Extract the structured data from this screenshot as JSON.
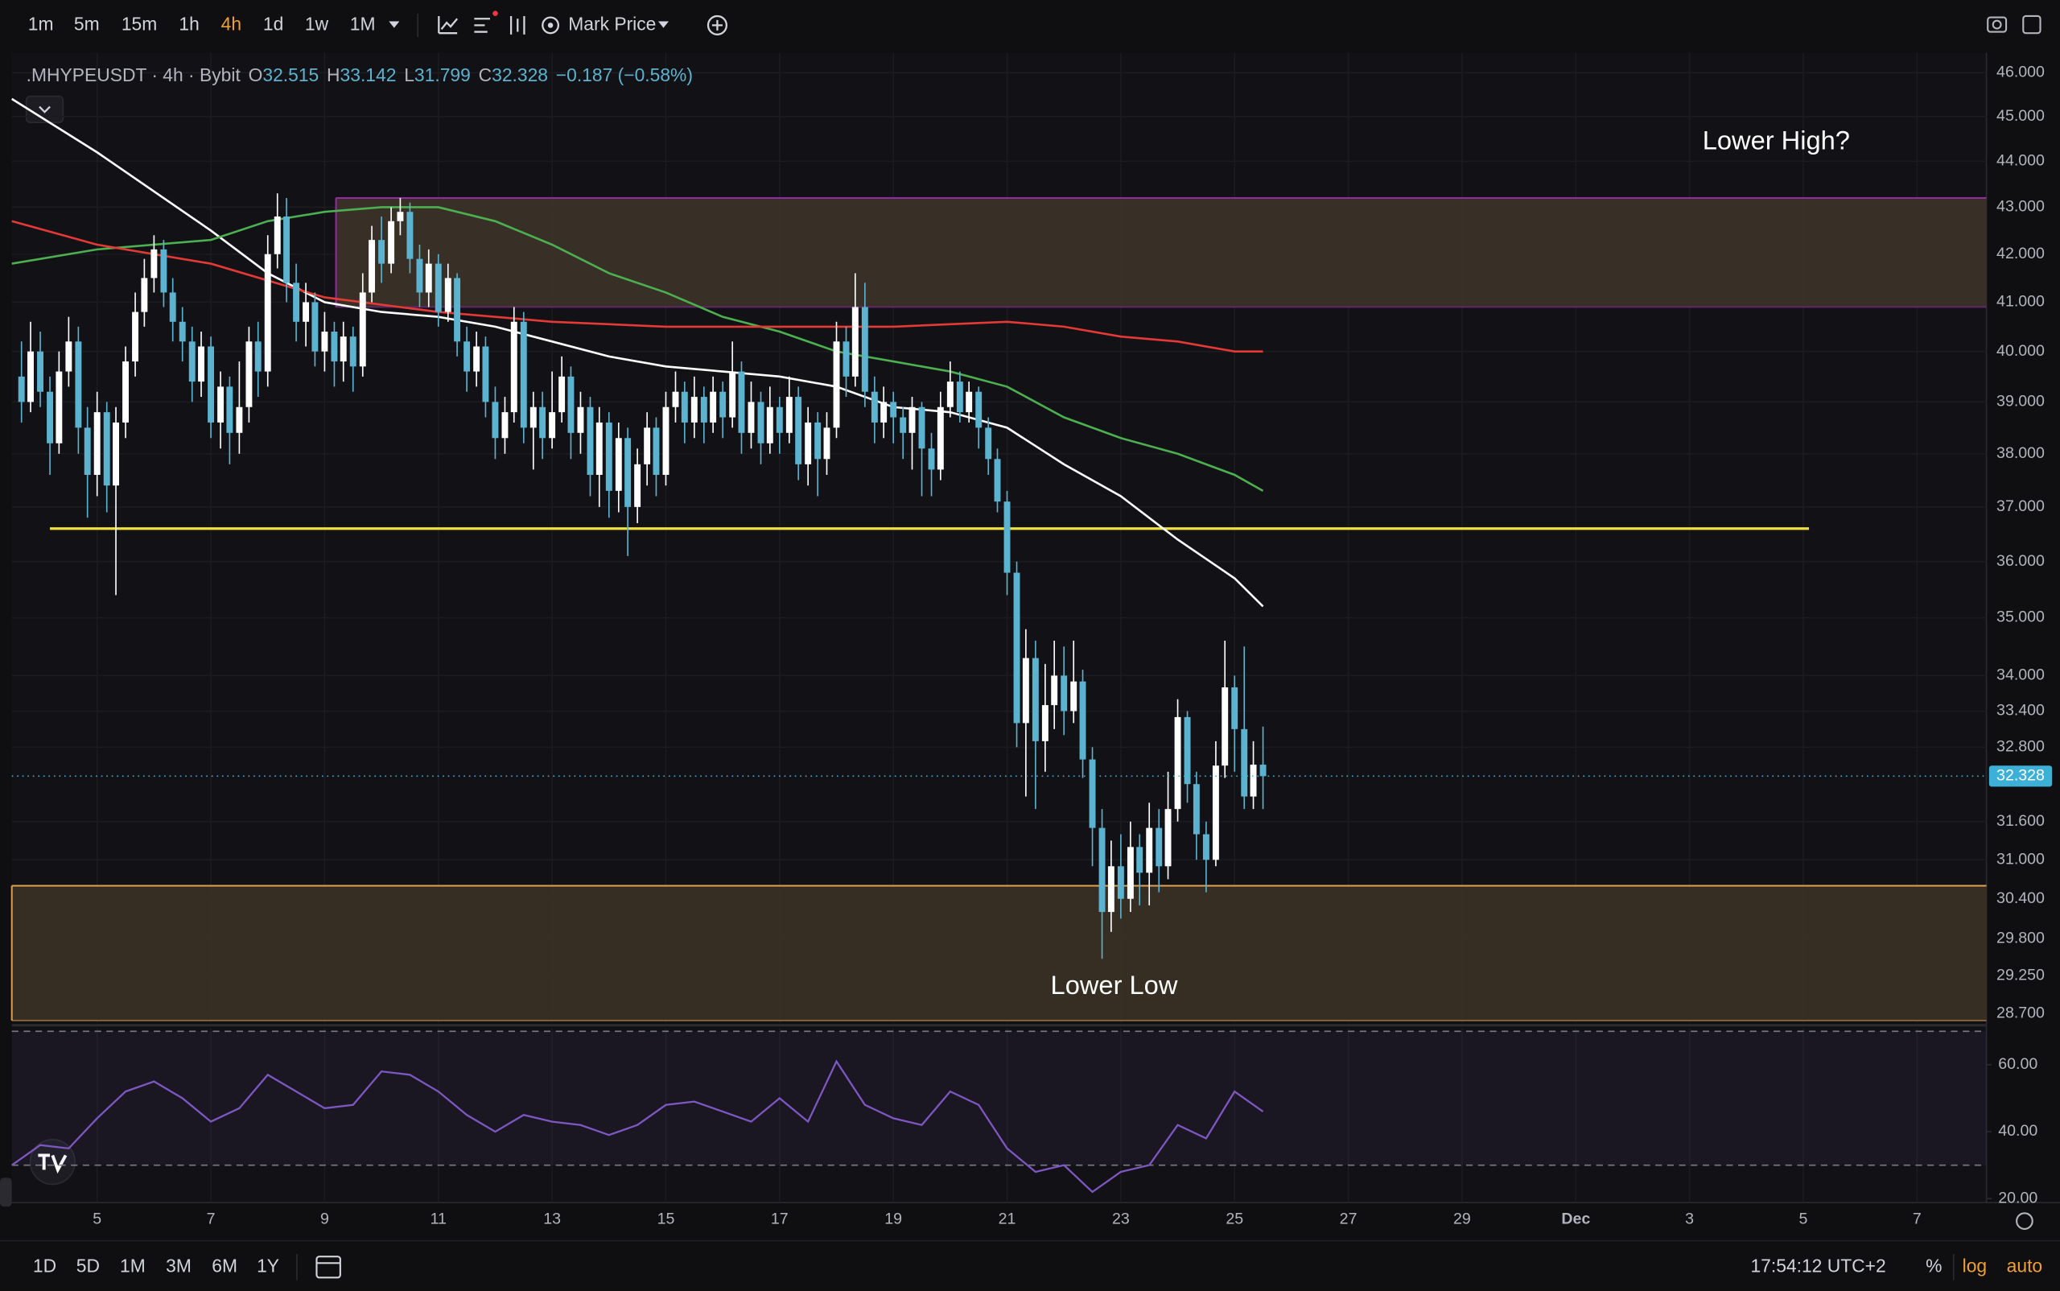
{
  "toolbar": {
    "intervals": [
      "1m",
      "5m",
      "15m",
      "1h",
      "4h",
      "1d",
      "1w",
      "1M"
    ],
    "active_interval": "4h",
    "price_source": "Mark Price"
  },
  "bottom_bar": {
    "ranges": [
      "1D",
      "5D",
      "1M",
      "3M",
      "6M",
      "1Y"
    ],
    "clock": "17:54:12 UTC+2",
    "options": [
      "%",
      "log",
      "auto"
    ]
  },
  "chart_data": {
    "type": "candlestick",
    "symbol": ".MHYPEUSDT · 4h · Bybit",
    "ohlc_labels": [
      "O",
      "H",
      "L",
      "C"
    ],
    "change": "−0.187 (−0.58%)",
    "up_color": "#ffffff",
    "down_color": "#5cb3cf",
    "x": [
      3.67,
      3.83,
      4,
      4.17,
      4.33,
      4.5,
      4.67,
      4.83,
      5,
      5.17,
      5.33,
      5.5,
      5.67,
      5.83,
      6,
      6.17,
      6.33,
      6.5,
      6.67,
      6.83,
      7,
      7.17,
      7.33,
      7.5,
      7.67,
      7.83,
      8,
      8.17,
      8.33,
      8.5,
      8.67,
      8.83,
      9,
      9.17,
      9.33,
      9.5,
      9.67,
      9.83,
      10,
      10.17,
      10.33,
      10.5,
      10.67,
      10.83,
      11,
      11.17,
      11.33,
      11.5,
      11.67,
      11.83,
      12,
      12.17,
      12.33,
      12.5,
      12.67,
      12.83,
      13,
      13.17,
      13.33,
      13.5,
      13.67,
      13.83,
      14,
      14.17,
      14.33,
      14.5,
      14.67,
      14.83,
      15,
      15.17,
      15.33,
      15.5,
      15.67,
      15.83,
      16,
      16.17,
      16.33,
      16.5,
      16.67,
      16.83,
      17,
      17.17,
      17.33,
      17.5,
      17.67,
      17.83,
      18,
      18.17,
      18.33,
      18.5,
      18.67,
      18.83,
      19,
      19.17,
      19.33,
      19.5,
      19.67,
      19.83,
      20,
      20.17,
      20.33,
      20.5,
      20.67,
      20.83,
      21,
      21.17,
      21.33,
      21.5,
      21.67,
      21.83,
      22,
      22.17,
      22.33,
      22.5,
      22.67,
      22.83,
      23,
      23.17,
      23.33,
      23.5,
      23.67,
      23.83,
      24,
      24.17,
      24.33,
      24.5,
      24.67,
      24.83,
      25,
      25.17,
      25.33,
      25.5
    ],
    "open": [
      39.5,
      39.0,
      40.0,
      39.2,
      38.2,
      39.6,
      40.2,
      38.5,
      37.6,
      38.8,
      37.4,
      38.6,
      39.8,
      40.8,
      41.5,
      42.1,
      41.2,
      40.6,
      40.2,
      39.4,
      40.1,
      38.6,
      39.3,
      38.4,
      38.9,
      40.2,
      39.6,
      42.0,
      42.8,
      41.4,
      40.6,
      41.0,
      40.0,
      40.4,
      39.8,
      40.3,
      39.7,
      41.2,
      42.3,
      41.8,
      42.7,
      42.9,
      41.9,
      41.2,
      41.8,
      40.8,
      41.5,
      40.2,
      39.6,
      40.1,
      39.0,
      38.3,
      38.8,
      40.6,
      38.5,
      38.9,
      38.3,
      38.8,
      39.5,
      38.4,
      38.9,
      37.6,
      38.6,
      37.3,
      38.3,
      37.0,
      37.8,
      38.5,
      37.6,
      38.9,
      39.2,
      38.6,
      39.1,
      38.6,
      39.2,
      38.7,
      39.6,
      38.4,
      39.0,
      38.2,
      38.9,
      38.4,
      39.1,
      37.8,
      38.6,
      37.9,
      38.5,
      40.2,
      39.5,
      40.9,
      39.2,
      38.6,
      39.0,
      38.7,
      38.4,
      38.9,
      38.1,
      37.7,
      38.9,
      39.4,
      38.8,
      39.2,
      38.5,
      37.9,
      37.1,
      35.8,
      33.2,
      34.3,
      32.9,
      33.5,
      34.0,
      33.4,
      33.9,
      32.6,
      31.5,
      30.2,
      30.9,
      30.4,
      31.2,
      30.8,
      31.5,
      30.9,
      31.8,
      33.3,
      32.2,
      31.4,
      31.0,
      32.5,
      33.8,
      33.1,
      32.0,
      32.515
    ],
    "high": [
      40.2,
      40.6,
      40.4,
      39.5,
      40.0,
      40.7,
      40.5,
      38.9,
      39.2,
      39.0,
      38.9,
      40.1,
      41.2,
      41.9,
      42.4,
      42.3,
      41.5,
      40.9,
      40.5,
      40.4,
      40.3,
      39.6,
      39.5,
      39.8,
      40.5,
      40.6,
      42.4,
      43.3,
      43.2,
      41.8,
      41.4,
      41.2,
      40.8,
      40.6,
      40.6,
      40.5,
      41.6,
      42.6,
      42.8,
      43.0,
      43.2,
      43.1,
      42.2,
      42.1,
      42.0,
      41.8,
      41.6,
      40.5,
      40.4,
      40.3,
      39.3,
      39.1,
      40.9,
      40.8,
      39.2,
      39.2,
      39.6,
      39.9,
      39.7,
      39.2,
      39.1,
      38.9,
      38.8,
      38.6,
      38.5,
      38.1,
      38.8,
      38.7,
      39.2,
      39.6,
      39.4,
      39.5,
      39.3,
      39.5,
      39.4,
      40.2,
      39.8,
      39.4,
      39.2,
      39.3,
      39.1,
      39.5,
      39.3,
      38.9,
      38.8,
      38.8,
      40.6,
      40.5,
      41.6,
      41.4,
      39.5,
      39.3,
      39.2,
      38.9,
      39.1,
      39.0,
      38.4,
      39.2,
      39.8,
      39.6,
      39.4,
      39.3,
      38.7,
      38.1,
      37.3,
      36.0,
      34.8,
      34.6,
      34.2,
      34.6,
      34.5,
      34.6,
      34.1,
      32.8,
      31.8,
      31.3,
      31.4,
      31.6,
      31.4,
      31.9,
      31.8,
      32.4,
      33.6,
      33.4,
      32.4,
      31.6,
      32.9,
      34.6,
      34.0,
      34.5,
      32.9,
      33.142
    ],
    "low": [
      38.6,
      38.8,
      38.9,
      37.6,
      38.0,
      39.3,
      38.0,
      36.8,
      37.2,
      36.9,
      35.4,
      38.3,
      39.5,
      40.5,
      41.2,
      40.9,
      40.2,
      39.8,
      39.0,
      39.1,
      38.3,
      38.1,
      37.8,
      38.0,
      38.6,
      39.1,
      39.3,
      41.7,
      41.0,
      40.2,
      40.1,
      39.7,
      39.6,
      39.3,
      39.4,
      39.2,
      39.5,
      41.0,
      41.4,
      41.6,
      42.4,
      41.6,
      40.9,
      40.9,
      40.5,
      40.6,
      39.9,
      39.2,
      39.3,
      38.7,
      37.9,
      38.0,
      38.6,
      38.2,
      37.7,
      37.9,
      38.1,
      38.6,
      37.9,
      38.0,
      37.2,
      37.0,
      36.8,
      36.9,
      36.1,
      36.7,
      37.4,
      37.2,
      37.4,
      38.6,
      38.2,
      38.3,
      38.2,
      38.4,
      38.3,
      38.5,
      38.0,
      38.1,
      37.8,
      38.0,
      38.0,
      38.2,
      37.5,
      37.4,
      37.2,
      37.6,
      38.3,
      39.1,
      39.3,
      38.9,
      38.2,
      38.3,
      38.2,
      37.9,
      37.7,
      37.2,
      37.2,
      37.5,
      38.7,
      38.6,
      38.6,
      38.1,
      37.6,
      36.9,
      35.4,
      32.8,
      32.0,
      31.8,
      32.4,
      33.1,
      33.0,
      33.2,
      32.3,
      30.9,
      29.5,
      29.9,
      30.1,
      30.2,
      30.3,
      30.3,
      30.5,
      30.7,
      31.6,
      31.9,
      31.0,
      30.5,
      30.9,
      32.3,
      32.4,
      31.8,
      31.8,
      31.799
    ],
    "close": [
      39.0,
      40.0,
      39.2,
      38.2,
      39.6,
      40.2,
      38.5,
      37.6,
      38.8,
      37.4,
      38.6,
      39.8,
      40.8,
      41.5,
      42.1,
      41.2,
      40.6,
      40.2,
      39.4,
      40.1,
      38.6,
      39.3,
      38.4,
      38.9,
      40.2,
      39.6,
      42.0,
      42.8,
      41.4,
      40.6,
      41.0,
      40.0,
      40.4,
      39.8,
      40.3,
      39.7,
      41.2,
      42.3,
      41.8,
      42.7,
      42.9,
      41.9,
      41.2,
      41.8,
      40.8,
      41.5,
      40.2,
      39.6,
      40.1,
      39.0,
      38.3,
      38.8,
      40.6,
      38.5,
      38.9,
      38.3,
      38.8,
      39.5,
      38.4,
      38.9,
      37.6,
      38.6,
      37.3,
      38.3,
      37.0,
      37.8,
      38.5,
      37.6,
      38.9,
      39.2,
      38.6,
      39.1,
      38.6,
      39.2,
      38.7,
      39.6,
      38.4,
      39.0,
      38.2,
      38.9,
      38.4,
      39.1,
      37.8,
      38.6,
      37.9,
      38.5,
      40.2,
      39.5,
      40.9,
      39.2,
      38.6,
      39.0,
      38.7,
      38.4,
      38.9,
      38.1,
      37.7,
      38.9,
      39.4,
      38.8,
      39.2,
      38.5,
      37.9,
      37.1,
      35.8,
      33.2,
      34.3,
      32.9,
      33.5,
      34.0,
      33.4,
      33.9,
      32.6,
      31.5,
      30.2,
      30.9,
      30.4,
      31.2,
      30.8,
      31.5,
      30.9,
      31.8,
      33.3,
      32.2,
      31.4,
      31.0,
      32.5,
      33.8,
      33.1,
      32.0,
      32.515,
      32.328
    ],
    "price_line_color": "#3cb0d6",
    "xlim": [
      3.5,
      38.22
    ],
    "xticks": [
      5,
      7,
      9,
      11,
      13,
      15,
      17,
      19,
      21,
      23,
      25,
      27,
      29,
      {
        "value": 31,
        "label": "Dec"
      },
      {
        "value": 33,
        "label": "3"
      },
      {
        "value": 35,
        "label": "5"
      },
      {
        "value": 37,
        "label": "7"
      }
    ],
    "ylim": [
      28.57,
      46.46
    ],
    "log_scale": true,
    "grid": true,
    "yticks": [
      {
        "value": 46,
        "label": "46.000"
      },
      {
        "value": 45,
        "label": "45.000"
      },
      {
        "value": 44,
        "label": "44.000"
      },
      {
        "value": 43,
        "label": "43.000"
      },
      {
        "value": 42,
        "label": "42.000"
      },
      {
        "value": 41,
        "label": "41.000"
      },
      {
        "value": 40,
        "label": "40.000"
      },
      {
        "value": 39,
        "label": "39.000"
      },
      {
        "value": 38,
        "label": "38.000"
      },
      {
        "value": 37,
        "label": "37.000"
      },
      {
        "value": 36,
        "label": "36.000"
      },
      {
        "value": 35,
        "label": "35.000"
      },
      {
        "value": 34,
        "label": "34.000"
      },
      {
        "value": 33.4,
        "label": "33.400"
      },
      {
        "value": 32.8,
        "label": "32.800"
      },
      {
        "value": 31.6,
        "label": "31.600"
      },
      {
        "value": 31,
        "label": "31.000"
      },
      {
        "value": 30.4,
        "label": "30.400"
      },
      {
        "value": 29.8,
        "label": "29.800"
      },
      {
        "value": 29.25,
        "label": "29.250"
      },
      {
        "value": 28.7,
        "label": "28.700"
      }
    ],
    "lines": [
      {
        "color": "#ffffff",
        "x": [
          3.5,
          5,
          7,
          8,
          9,
          10,
          11,
          12,
          13,
          14,
          15,
          16,
          17,
          18,
          19,
          20,
          21,
          22,
          23,
          24,
          25,
          25.5
        ],
        "values": [
          45.4,
          44.2,
          42.5,
          41.6,
          41.0,
          40.8,
          40.7,
          40.5,
          40.2,
          39.9,
          39.7,
          39.6,
          39.5,
          39.3,
          38.9,
          38.8,
          38.5,
          37.8,
          37.2,
          36.4,
          35.7,
          35.2
        ]
      },
      {
        "color": "#4caf50",
        "x": [
          3.5,
          5,
          7,
          8,
          9,
          10,
          11,
          12,
          13,
          14,
          15,
          16,
          17,
          18,
          19,
          20,
          21,
          22,
          23,
          24,
          25,
          25.5
        ],
        "values": [
          41.8,
          42.1,
          42.3,
          42.7,
          42.9,
          43.0,
          43.0,
          42.7,
          42.2,
          41.6,
          41.2,
          40.7,
          40.4,
          40.0,
          39.8,
          39.6,
          39.3,
          38.7,
          38.3,
          38.0,
          37.6,
          37.3
        ]
      },
      {
        "color": "#e53935",
        "x": [
          3.5,
          5,
          7,
          9,
          11,
          13,
          15,
          17,
          19,
          21,
          22,
          23,
          24,
          25,
          25.5
        ],
        "values": [
          42.7,
          42.2,
          41.8,
          41.1,
          40.8,
          40.6,
          40.5,
          40.5,
          40.5,
          40.6,
          40.5,
          40.3,
          40.2,
          40.0,
          40.0
        ]
      }
    ],
    "zones": [
      {
        "x0": 9.2,
        "low": 40.9,
        "high": 43.2,
        "fill": "#3d3428",
        "border": "#9c27b0"
      },
      {
        "x0": 3.5,
        "low": 28.6,
        "high": 30.6,
        "fill": "#3b3224",
        "border": "#e0a050"
      }
    ],
    "levels": [
      {
        "value": 36.6,
        "x0": 4.17,
        "x1": 35.1,
        "color": "#f0e040"
      }
    ],
    "annotations": [
      "Lower High?",
      "Lower Low"
    ],
    "rsi": {
      "color": "#7e57c2",
      "x": [
        3.5,
        4,
        4.5,
        5,
        5.5,
        6,
        6.5,
        7,
        7.5,
        8,
        8.5,
        9,
        9.5,
        10,
        10.5,
        11,
        11.5,
        12,
        12.5,
        13,
        13.5,
        14,
        14.5,
        15,
        15.5,
        16,
        16.5,
        17,
        17.5,
        18,
        18.5,
        19,
        19.5,
        20,
        20.5,
        21,
        21.5,
        22,
        22.5,
        23,
        23.5,
        24,
        24.5,
        25,
        25.5
      ],
      "values": [
        30,
        36,
        35,
        44,
        52,
        55,
        50,
        43,
        47,
        57,
        52,
        47,
        48,
        58,
        57,
        52,
        45,
        40,
        45,
        43,
        42,
        39,
        42,
        48,
        49,
        46,
        43,
        50,
        43,
        61,
        48,
        44,
        42,
        52,
        48,
        35,
        28,
        30,
        22,
        28,
        30,
        42,
        38,
        52,
        46
      ],
      "ylim": [
        18.8,
        71
      ],
      "yticks": [
        {
          "value": 60,
          "label": "60.00"
        },
        {
          "value": 40,
          "label": "40.00"
        },
        {
          "value": 20,
          "label": "20.00"
        }
      ],
      "bands": [
        30,
        70
      ]
    }
  }
}
